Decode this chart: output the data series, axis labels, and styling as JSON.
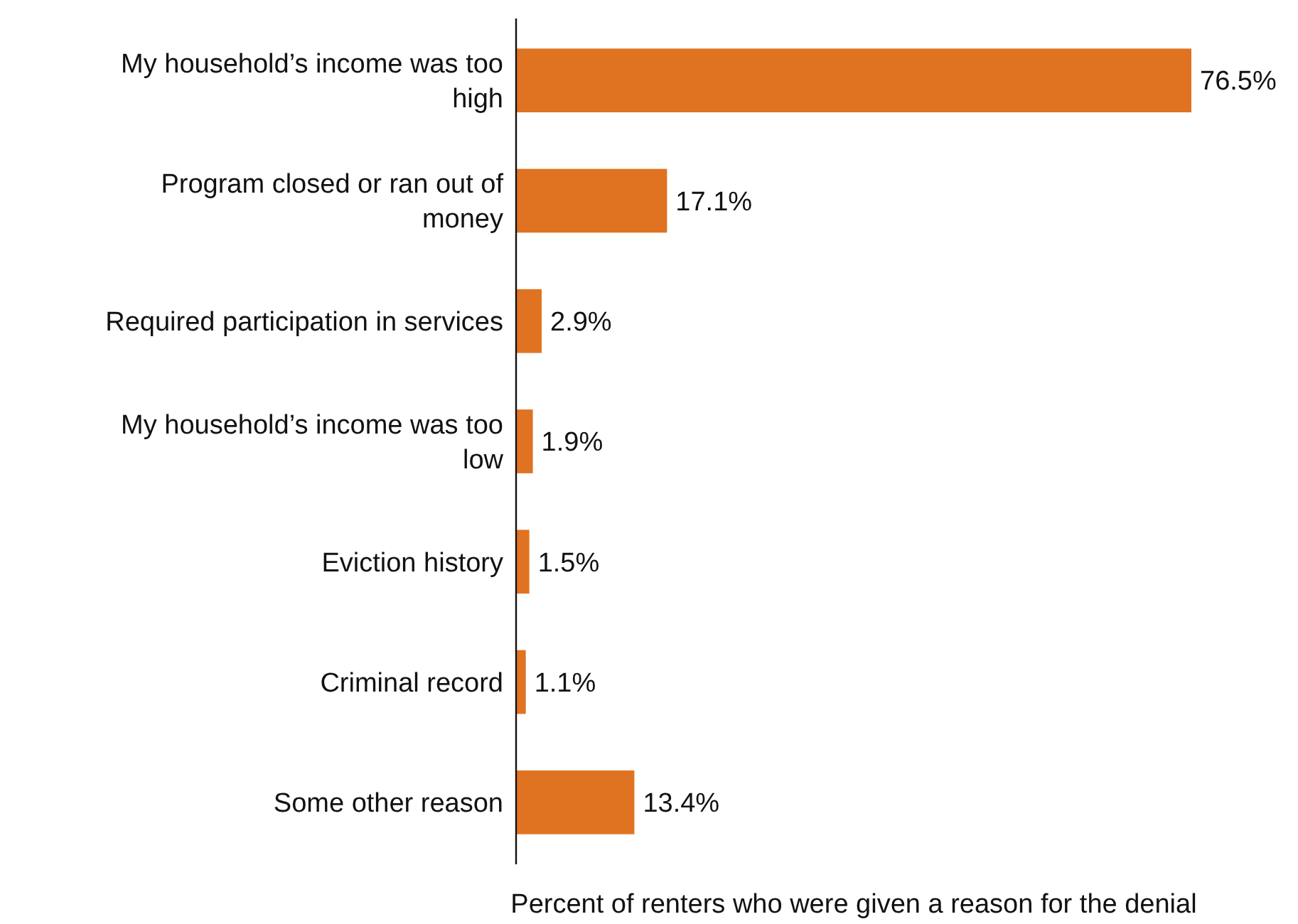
{
  "chart_data": {
    "type": "bar",
    "orientation": "horizontal",
    "categories": [
      "My household’s income was too high",
      "Program closed or ran out of money",
      "Required participation in services",
      "My household’s income was too low",
      "Eviction history",
      "Criminal record",
      "Some other reason"
    ],
    "values": [
      76.5,
      17.1,
      2.9,
      1.9,
      1.5,
      1.1,
      13.4
    ],
    "value_labels": [
      "76.5%",
      "17.1%",
      "2.9%",
      "1.9%",
      "1.5%",
      "1.1%",
      "13.4%"
    ],
    "color": "#e07322",
    "xlabel": "Percent of renters who were given a reason for the denial"
  }
}
